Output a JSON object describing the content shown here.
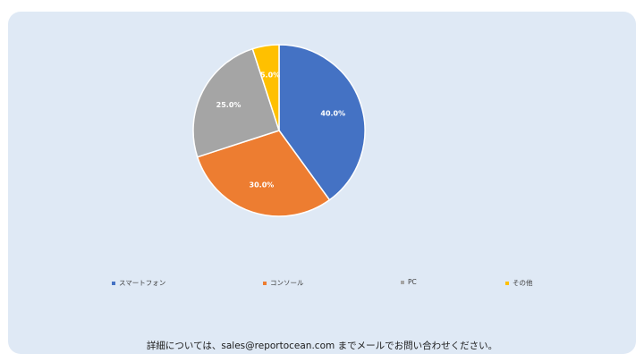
{
  "chart_data": {
    "type": "pie",
    "categories": [
      "スマートフォン",
      "コンソール",
      "PC",
      "その他"
    ],
    "values": [
      40.0,
      30.0,
      25.0,
      5.0
    ],
    "data_labels": [
      "40.0%",
      "30.0%",
      "25.0%",
      "5.0%"
    ],
    "colors": [
      "#4472c4",
      "#ed7d31",
      "#a5a5a5",
      "#ffc000"
    ],
    "legend_position": "bottom"
  },
  "footer": {
    "text": "詳細については、sales@reportocean.com までメールでお問い合わせください。"
  }
}
